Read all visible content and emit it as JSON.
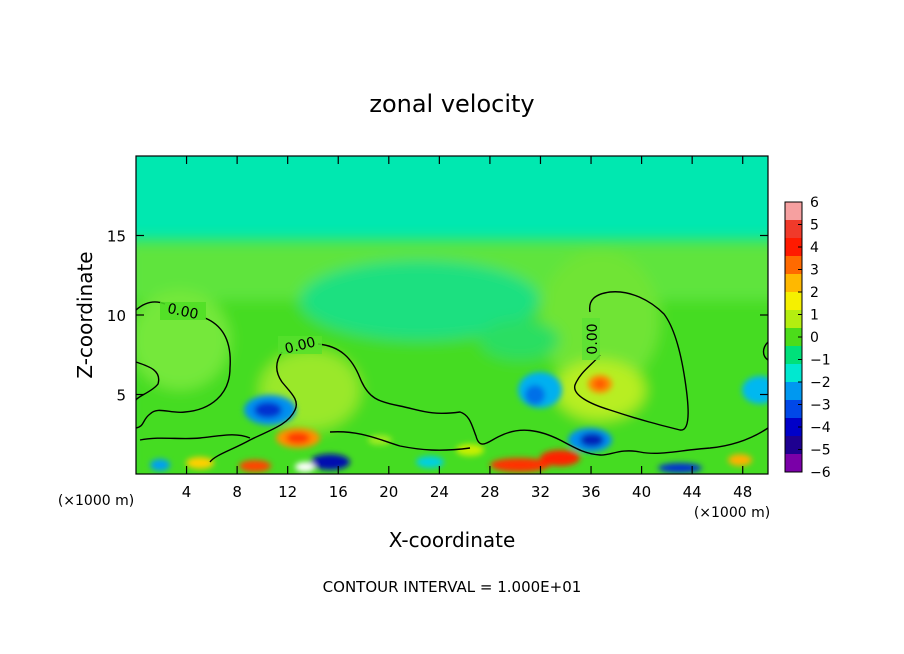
{
  "chart_data": {
    "type": "heatmap",
    "title": "zonal velocity",
    "xlabel": "X-coordinate",
    "ylabel": "Z-coordinate",
    "x_unit_label": "(×1000 m)",
    "xlim": [
      0,
      50
    ],
    "ylim": [
      0,
      20
    ],
    "x_ticks": [
      4,
      8,
      12,
      16,
      20,
      24,
      28,
      32,
      36,
      40,
      44,
      48
    ],
    "y_ticks": [
      5,
      10,
      15
    ],
    "colorbar": {
      "ticks": [
        6,
        5,
        4,
        3,
        2,
        1,
        0,
        -1,
        -2,
        -3,
        -4,
        -5,
        -6
      ],
      "range": [
        -6,
        6
      ],
      "colors": [
        "#f6a0a0",
        "#f03a2a",
        "#ff1a00",
        "#ff6a00",
        "#ffb800",
        "#f5f000",
        "#b4ee10",
        "#4cdc1a",
        "#00e07a",
        "#00e8d0",
        "#0098f0",
        "#0048e8",
        "#0000c8",
        "#1e0090",
        "#7a00a8"
      ]
    },
    "contours": [
      {
        "label": "0.00",
        "level": 0
      },
      {
        "label": "0.00",
        "level": 0
      },
      {
        "label": "0.00",
        "level": 0
      }
    ],
    "footer": "CONTOUR INTERVAL = 1.000E+01"
  }
}
